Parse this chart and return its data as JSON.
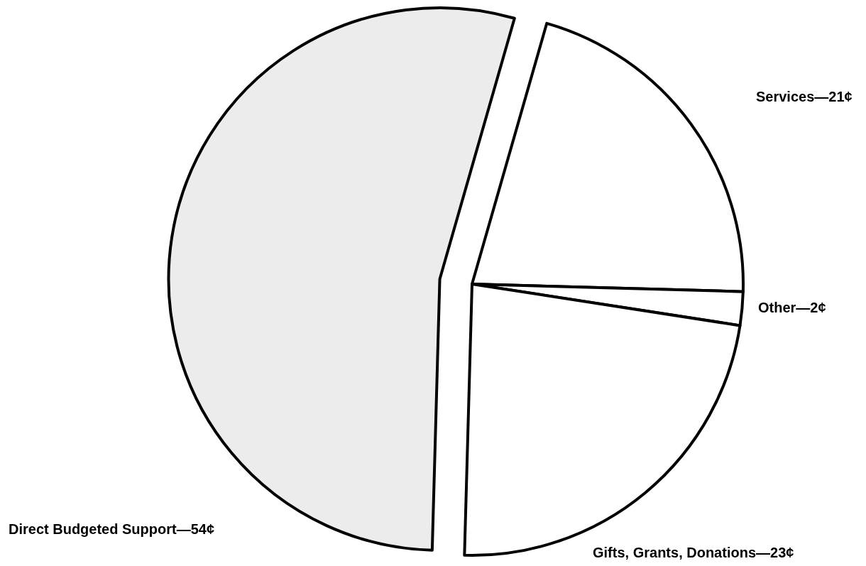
{
  "chart_data": {
    "type": "pie",
    "categories": [
      "Services—21¢",
      "Other—2¢",
      "Gifts, Grants, Donations—23¢",
      "Direct Budgeted Support—54¢"
    ],
    "values": [
      21,
      2,
      23,
      54
    ],
    "colors": [
      "#ffffff",
      "#ffffff",
      "#ffffff",
      "#ececec"
    ]
  }
}
